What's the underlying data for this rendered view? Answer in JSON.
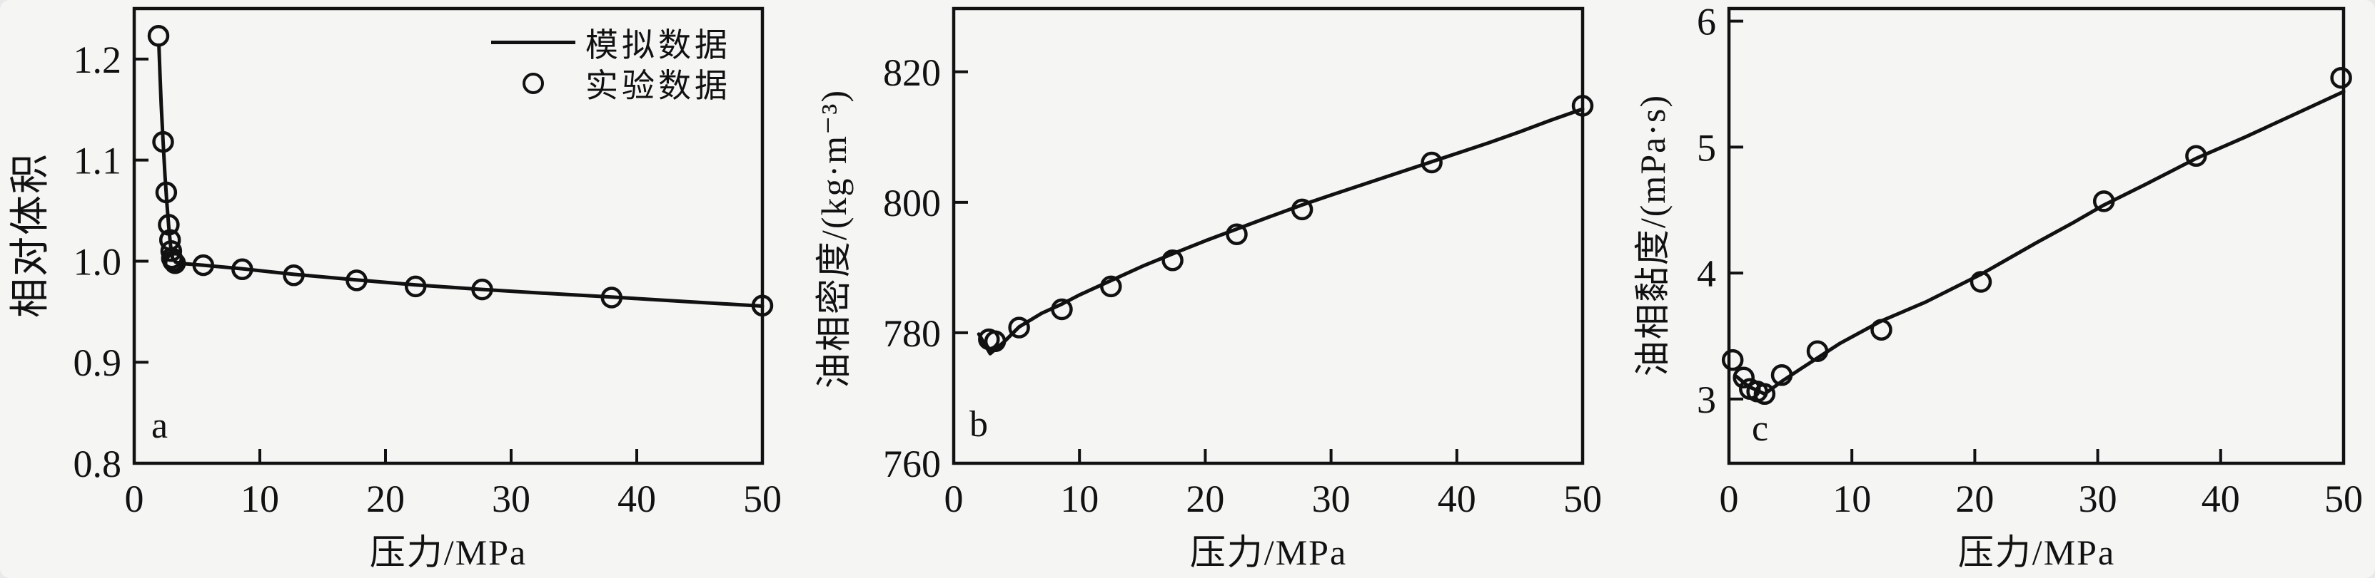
{
  "figure": {
    "background": "#f5f5f4",
    "ink": "#111111",
    "legend": {
      "position": "top-right-inside-panel-a",
      "items": [
        {
          "marker": "line",
          "label": "模拟数据"
        },
        {
          "marker": "circle",
          "label": "实验数据"
        }
      ]
    }
  },
  "chart_data": [
    {
      "id": "a",
      "panel_label": "a",
      "type": "line+scatter",
      "xlabel": "压力/MPa",
      "ylabel": "相对体积",
      "xlim": [
        0,
        50
      ],
      "ylim": [
        0.8,
        1.25
      ],
      "grid": false,
      "xtick_values": [
        0,
        10,
        20,
        30,
        40,
        50
      ],
      "xtick_labels": [
        "0",
        "10",
        "20",
        "30",
        "40",
        "50"
      ],
      "ytick_values": [
        0.8,
        0.9,
        1.0,
        1.1,
        1.2
      ],
      "ytick_labels": [
        "0.8",
        "0.9",
        "1.0",
        "1.1",
        "1.2"
      ],
      "series": [
        {
          "name": "模拟数据",
          "type": "line",
          "points": [
            [
              1.97,
              1.212
            ],
            [
              2.05,
              1.185
            ],
            [
              2.15,
              1.155
            ],
            [
              2.3,
              1.118
            ],
            [
              2.45,
              1.085
            ],
            [
              2.6,
              1.057
            ],
            [
              2.75,
              1.034
            ],
            [
              2.9,
              1.015
            ],
            [
              3.05,
              1.003
            ],
            [
              3.3,
              0.999
            ],
            [
              4,
              0.9975
            ],
            [
              5.5,
              0.996
            ],
            [
              8.6,
              0.9925
            ],
            [
              12.7,
              0.987
            ],
            [
              17.7,
              0.9815
            ],
            [
              22.4,
              0.9765
            ],
            [
              27.7,
              0.972
            ],
            [
              33,
              0.968
            ],
            [
              38,
              0.9645
            ],
            [
              44,
              0.96
            ],
            [
              50,
              0.9555
            ]
          ]
        },
        {
          "name": "实验数据",
          "type": "scatter",
          "points": [
            [
              1.93,
              1.223
            ],
            [
              2.3,
              1.118
            ],
            [
              2.55,
              1.068
            ],
            [
              2.75,
              1.036
            ],
            [
              2.85,
              1.021
            ],
            [
              2.95,
              1.01
            ],
            [
              3.0,
              1.003
            ],
            [
              3.1,
              1.0
            ],
            [
              3.25,
              0.998
            ],
            [
              5.5,
              0.996
            ],
            [
              8.6,
              0.992
            ],
            [
              12.7,
              0.986
            ],
            [
              17.7,
              0.981
            ],
            [
              22.4,
              0.975
            ],
            [
              27.7,
              0.972
            ],
            [
              38,
              0.964
            ],
            [
              50,
              0.956
            ]
          ]
        }
      ]
    },
    {
      "id": "b",
      "panel_label": "b",
      "type": "line+scatter",
      "xlabel": "压力/MPa",
      "ylabel": "油相密度/(kg·m⁻³)",
      "xlim": [
        0,
        50
      ],
      "ylim": [
        760,
        829.7
      ],
      "grid": false,
      "xtick_values": [
        0,
        10,
        20,
        30,
        40,
        50
      ],
      "xtick_labels": [
        "0",
        "10",
        "20",
        "30",
        "40",
        "50"
      ],
      "ytick_values": [
        760,
        780,
        800,
        820
      ],
      "ytick_labels": [
        "760",
        "780",
        "800",
        "820"
      ],
      "series": [
        {
          "name": "模拟数据",
          "type": "line",
          "points": [
            [
              2.0,
              779.8
            ],
            [
              2.9,
              776.8
            ],
            [
              4,
              778.6
            ],
            [
              5.2,
              780.9
            ],
            [
              7,
              783.0
            ],
            [
              8.6,
              784.4
            ],
            [
              10,
              785.8
            ],
            [
              12.5,
              788.0
            ],
            [
              15,
              790.2
            ],
            [
              17.4,
              792.1
            ],
            [
              20,
              794.1
            ],
            [
              22.5,
              795.9
            ],
            [
              25,
              797.7
            ],
            [
              27.7,
              799.6
            ],
            [
              30,
              801.1
            ],
            [
              32.5,
              802.7
            ],
            [
              35,
              804.3
            ],
            [
              37.5,
              805.9
            ],
            [
              40,
              807.5
            ],
            [
              42.5,
              809.1
            ],
            [
              45,
              810.8
            ],
            [
              47.5,
              812.6
            ],
            [
              50,
              814.3
            ]
          ]
        },
        {
          "name": "实验数据",
          "type": "scatter",
          "points": [
            [
              2.8,
              779.0
            ],
            [
              3.3,
              778.7
            ],
            [
              5.2,
              780.8
            ],
            [
              8.6,
              783.6
            ],
            [
              12.5,
              787.1
            ],
            [
              17.4,
              791.1
            ],
            [
              22.5,
              795.1
            ],
            [
              27.7,
              798.9
            ],
            [
              38,
              806.1
            ],
            [
              50,
              814.8
            ]
          ]
        }
      ]
    },
    {
      "id": "c",
      "panel_label": "c",
      "type": "line+scatter",
      "xlabel": "压力/MPa",
      "ylabel": "油相黏度/(mPa·s)",
      "xlim": [
        0,
        50
      ],
      "ylim": [
        2.49,
        6.1
      ],
      "grid": false,
      "xtick_values": [
        0,
        10,
        20,
        30,
        40,
        50
      ],
      "xtick_labels": [
        "0",
        "10",
        "20",
        "30",
        "40",
        "50"
      ],
      "ytick_values": [
        3,
        4,
        5,
        6
      ],
      "ytick_labels": [
        "3",
        "4",
        "5",
        "6"
      ],
      "series": [
        {
          "name": "模拟数据",
          "type": "line",
          "points": [
            [
              0.6,
              3.18
            ],
            [
              1.6,
              3.1
            ],
            [
              2.9,
              3.04
            ],
            [
              4.3,
              3.14
            ],
            [
              6,
              3.25
            ],
            [
              9,
              3.44
            ],
            [
              12.4,
              3.62
            ],
            [
              16,
              3.77
            ],
            [
              20.5,
              3.99
            ],
            [
              25,
              4.24
            ],
            [
              28,
              4.4
            ],
            [
              30.5,
              4.54
            ],
            [
              34,
              4.71
            ],
            [
              38,
              4.91
            ],
            [
              42,
              5.08
            ],
            [
              46,
              5.26
            ],
            [
              50,
              5.44
            ]
          ]
        },
        {
          "name": "实验数据",
          "type": "scatter",
          "points": [
            [
              0.3,
              3.31
            ],
            [
              1.2,
              3.17
            ],
            [
              1.7,
              3.08
            ],
            [
              2.3,
              3.06
            ],
            [
              2.9,
              3.04
            ],
            [
              4.3,
              3.19
            ],
            [
              7.2,
              3.38
            ],
            [
              12.4,
              3.55
            ],
            [
              20.5,
              3.93
            ],
            [
              30.5,
              4.57
            ],
            [
              38,
              4.93
            ],
            [
              49.8,
              5.55
            ]
          ]
        }
      ]
    }
  ]
}
